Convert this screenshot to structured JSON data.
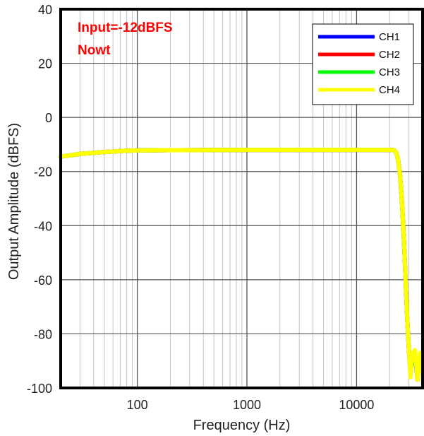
{
  "chart_data": {
    "type": "line",
    "xlabel": "Frequency (Hz)",
    "ylabel": "Output Amplitude (dBFS)",
    "xscale": "log",
    "xlim": [
      20,
      40000
    ],
    "ylim": [
      -100,
      40
    ],
    "x_ticks": [
      100,
      1000,
      10000
    ],
    "x_tick_labels": [
      "100",
      "1000",
      "10000"
    ],
    "y_ticks": [
      40,
      20,
      0,
      -20,
      -40,
      -60,
      -80,
      -100
    ],
    "y_tick_labels": [
      "40",
      "20",
      "0",
      "-20",
      "-40",
      "-60",
      "-80",
      "-100"
    ],
    "grid": true,
    "legend_position": "top-right",
    "annotations": [
      "Input=-12dBFS",
      "Nowt"
    ],
    "annotation_color": "#ff0000",
    "series": [
      {
        "name": "CH1",
        "color": "#0000ff",
        "x": [
          20,
          30,
          50,
          80,
          100,
          200,
          1000,
          10000,
          20000,
          22000,
          23000,
          24000,
          25000,
          26000,
          27000,
          28000,
          29000,
          30000,
          31000,
          32000,
          34000,
          36000,
          38000,
          40000
        ],
        "y": [
          -14.5,
          -13.5,
          -12.8,
          -12.3,
          -12.2,
          -12.1,
          -12,
          -12,
          -12,
          -12.1,
          -13,
          -16,
          -22,
          -32,
          -45,
          -60,
          -75,
          -86,
          -94,
          -90,
          -88,
          -96,
          -89,
          -92
        ]
      },
      {
        "name": "CH2",
        "color": "#ff0000",
        "x": [
          20,
          30,
          50,
          80,
          100,
          200,
          1000,
          10000,
          20000,
          22000,
          23000,
          24000,
          25000,
          26000,
          27000,
          28000,
          29000,
          30000,
          31000,
          32000,
          34000,
          36000,
          38000,
          40000
        ],
        "y": [
          -14.5,
          -13.5,
          -12.8,
          -12.3,
          -12.2,
          -12.1,
          -12,
          -12,
          -12,
          -12.1,
          -13,
          -16,
          -22,
          -32,
          -45,
          -60,
          -75,
          -86,
          -95,
          -89,
          -87,
          -97,
          -88,
          -93
        ]
      },
      {
        "name": "CH3",
        "color": "#00ff00",
        "x": [
          20,
          30,
          50,
          80,
          100,
          200,
          1000,
          10000,
          20000,
          22000,
          23000,
          24000,
          25000,
          26000,
          27000,
          28000,
          29000,
          30000,
          31000,
          32000,
          34000,
          36000,
          38000,
          40000
        ],
        "y": [
          -14.5,
          -13.5,
          -12.8,
          -12.3,
          -12.2,
          -12.1,
          -12,
          -12,
          -12,
          -12.1,
          -13,
          -16,
          -22,
          -32,
          -45,
          -60,
          -75,
          -86,
          -93,
          -91,
          -89,
          -95,
          -90,
          -91
        ]
      },
      {
        "name": "CH4",
        "color": "#ffff00",
        "x": [
          20,
          30,
          50,
          80,
          100,
          200,
          1000,
          10000,
          20000,
          22000,
          23000,
          24000,
          25000,
          26000,
          27000,
          28000,
          29000,
          30000,
          31000,
          32000,
          34000,
          36000,
          38000,
          40000
        ],
        "y": [
          -14.5,
          -13.5,
          -12.8,
          -12.3,
          -12.2,
          -12.1,
          -12,
          -12,
          -12,
          -12.1,
          -13,
          -16,
          -22,
          -32,
          -45,
          -60,
          -75,
          -86,
          -96,
          -88,
          -86,
          -97,
          -87,
          -94
        ]
      }
    ]
  }
}
